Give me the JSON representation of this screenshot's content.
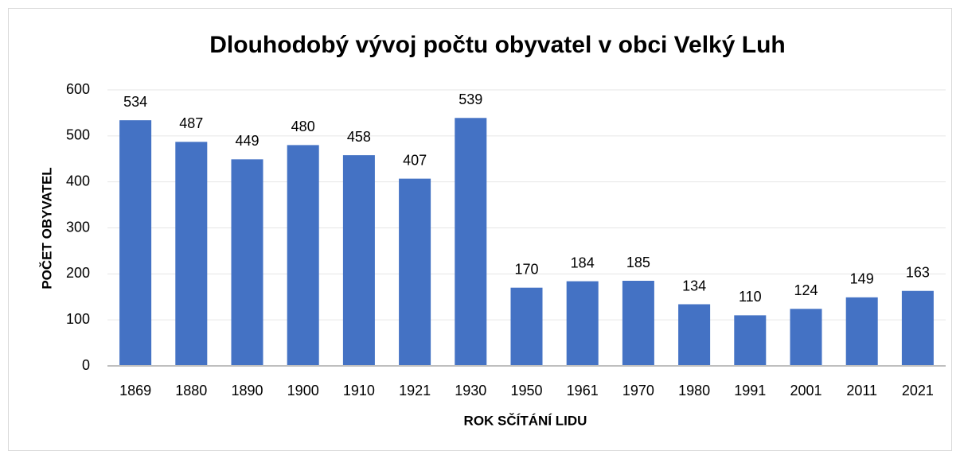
{
  "chart_data": {
    "type": "bar",
    "title": "Dlouhodobý vývoj počtu obyvatel v obci Velký Luh",
    "x_label": "ROK SČÍTÁNÍ LIDU",
    "y_label": "POČET OBYVATEL",
    "categories": [
      "1869",
      "1880",
      "1890",
      "1900",
      "1910",
      "1921",
      "1930",
      "1950",
      "1961",
      "1970",
      "1980",
      "1991",
      "2001",
      "2011",
      "2021"
    ],
    "values": [
      534,
      487,
      449,
      480,
      458,
      407,
      539,
      170,
      184,
      185,
      134,
      110,
      124,
      149,
      163
    ],
    "color": "#4472c4",
    "ylim": [
      0,
      600
    ],
    "yticks": [
      0,
      100,
      200,
      300,
      400,
      500,
      600
    ],
    "grid": true
  }
}
